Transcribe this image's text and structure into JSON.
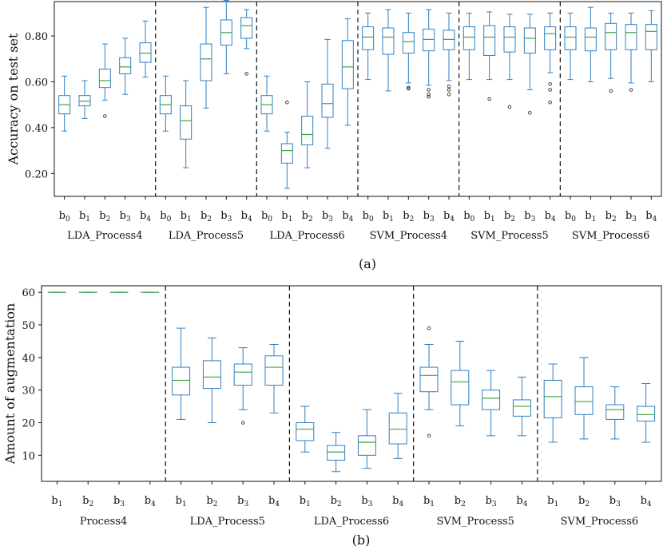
{
  "colors": {
    "box": "#2f7fc1",
    "median": "#3ca63c",
    "flier": "#333333",
    "divider": "#111111",
    "axes": "#111111"
  },
  "chart_data": [
    {
      "type": "box",
      "panel_label": "(a)",
      "ylabel": "Accuracy on test set",
      "ylim": [
        0.1,
        0.95
      ],
      "yticks": [
        "0.20",
        "0.40",
        "0.60",
        "0.80"
      ],
      "ytick_values": [
        0.2,
        0.4,
        0.6,
        0.8
      ],
      "groups": [
        {
          "name": "LDA_Process4",
          "boxes": [
            {
              "label": "b0",
              "whislo": 0.385,
              "q1": 0.46,
              "med": 0.5,
              "q3": 0.54,
              "whishi": 0.625,
              "fliers": []
            },
            {
              "label": "b1",
              "whislo": 0.44,
              "q1": 0.495,
              "med": 0.515,
              "q3": 0.54,
              "whishi": 0.605,
              "fliers": []
            },
            {
              "label": "b2",
              "whislo": 0.52,
              "q1": 0.575,
              "med": 0.605,
              "q3": 0.655,
              "whishi": 0.765,
              "fliers": [
                0.45
              ]
            },
            {
              "label": "b3",
              "whislo": 0.545,
              "q1": 0.635,
              "med": 0.665,
              "q3": 0.705,
              "whishi": 0.79,
              "fliers": []
            },
            {
              "label": "b4",
              "whislo": 0.62,
              "q1": 0.685,
              "med": 0.725,
              "q3": 0.77,
              "whishi": 0.865,
              "fliers": []
            }
          ]
        },
        {
          "name": "LDA_Process5",
          "boxes": [
            {
              "label": "b0",
              "whislo": 0.385,
              "q1": 0.46,
              "med": 0.5,
              "q3": 0.54,
              "whishi": 0.625,
              "fliers": []
            },
            {
              "label": "b1",
              "whislo": 0.225,
              "q1": 0.35,
              "med": 0.43,
              "q3": 0.495,
              "whishi": 0.605,
              "fliers": []
            },
            {
              "label": "b2",
              "whislo": 0.485,
              "q1": 0.605,
              "med": 0.7,
              "q3": 0.765,
              "whishi": 0.925,
              "fliers": []
            },
            {
              "label": "b3",
              "whislo": 0.635,
              "q1": 0.76,
              "med": 0.815,
              "q3": 0.87,
              "whishi": 0.955,
              "fliers": []
            },
            {
              "label": "b4",
              "whislo": 0.745,
              "q1": 0.79,
              "med": 0.845,
              "q3": 0.88,
              "whishi": 0.915,
              "fliers": [
                0.635
              ]
            }
          ]
        },
        {
          "name": "LDA_Process6",
          "boxes": [
            {
              "label": "b0",
              "whislo": 0.385,
              "q1": 0.46,
              "med": 0.5,
              "q3": 0.54,
              "whishi": 0.625,
              "fliers": []
            },
            {
              "label": "b1",
              "whislo": 0.135,
              "q1": 0.245,
              "med": 0.3,
              "q3": 0.33,
              "whishi": 0.38,
              "fliers": [
                0.51
              ]
            },
            {
              "label": "b2",
              "whislo": 0.225,
              "q1": 0.325,
              "med": 0.37,
              "q3": 0.45,
              "whishi": 0.6,
              "fliers": []
            },
            {
              "label": "b3",
              "whislo": 0.31,
              "q1": 0.445,
              "med": 0.505,
              "q3": 0.59,
              "whishi": 0.785,
              "fliers": []
            },
            {
              "label": "b4",
              "whislo": 0.41,
              "q1": 0.57,
              "med": 0.665,
              "q3": 0.78,
              "whishi": 0.875,
              "fliers": []
            }
          ]
        },
        {
          "name": "SVM_Process4",
          "boxes": [
            {
              "label": "b0",
              "whislo": 0.61,
              "q1": 0.74,
              "med": 0.795,
              "q3": 0.84,
              "whishi": 0.9,
              "fliers": []
            },
            {
              "label": "b1",
              "whislo": 0.56,
              "q1": 0.72,
              "med": 0.795,
              "q3": 0.835,
              "whishi": 0.915,
              "fliers": []
            },
            {
              "label": "b2",
              "whislo": 0.595,
              "q1": 0.725,
              "med": 0.775,
              "q3": 0.815,
              "whishi": 0.9,
              "fliers": [
                0.57,
                0.575
              ]
            },
            {
              "label": "b3",
              "whislo": 0.585,
              "q1": 0.735,
              "med": 0.785,
              "q3": 0.83,
              "whishi": 0.915,
              "fliers": [
                0.535,
                0.545,
                0.565
              ]
            },
            {
              "label": "b4",
              "whislo": 0.605,
              "q1": 0.74,
              "med": 0.785,
              "q3": 0.825,
              "whishi": 0.9,
              "fliers": [
                0.545,
                0.565,
                0.58
              ]
            }
          ]
        },
        {
          "name": "SVM_Process5",
          "boxes": [
            {
              "label": "b0",
              "whislo": 0.61,
              "q1": 0.74,
              "med": 0.795,
              "q3": 0.84,
              "whishi": 0.9,
              "fliers": []
            },
            {
              "label": "b1",
              "whislo": 0.61,
              "q1": 0.715,
              "med": 0.795,
              "q3": 0.845,
              "whishi": 0.905,
              "fliers": [
                0.525
              ]
            },
            {
              "label": "b2",
              "whislo": 0.61,
              "q1": 0.73,
              "med": 0.795,
              "q3": 0.84,
              "whishi": 0.895,
              "fliers": [
                0.49
              ]
            },
            {
              "label": "b3",
              "whislo": 0.565,
              "q1": 0.725,
              "med": 0.79,
              "q3": 0.835,
              "whishi": 0.895,
              "fliers": [
                0.465
              ]
            },
            {
              "label": "b4",
              "whislo": 0.64,
              "q1": 0.74,
              "med": 0.81,
              "q3": 0.84,
              "whishi": 0.9,
              "fliers": [
                0.51,
                0.565,
                0.59
              ]
            }
          ]
        },
        {
          "name": "SVM_Process6",
          "boxes": [
            {
              "label": "b0",
              "whislo": 0.61,
              "q1": 0.74,
              "med": 0.795,
              "q3": 0.84,
              "whishi": 0.9,
              "fliers": []
            },
            {
              "label": "b1",
              "whislo": 0.6,
              "q1": 0.735,
              "med": 0.795,
              "q3": 0.835,
              "whishi": 0.925,
              "fliers": []
            },
            {
              "label": "b2",
              "whislo": 0.615,
              "q1": 0.74,
              "med": 0.815,
              "q3": 0.855,
              "whishi": 0.9,
              "fliers": [
                0.56
              ]
            },
            {
              "label": "b3",
              "whislo": 0.595,
              "q1": 0.74,
              "med": 0.815,
              "q3": 0.85,
              "whishi": 0.9,
              "fliers": [
                0.565
              ]
            },
            {
              "label": "b4",
              "whislo": 0.6,
              "q1": 0.74,
              "med": 0.82,
              "q3": 0.85,
              "whishi": 0.91,
              "fliers": []
            }
          ]
        }
      ]
    },
    {
      "type": "box",
      "panel_label": "(b)",
      "ylabel": "Amount of augmentation",
      "ylim": [
        2,
        62
      ],
      "yticks": [
        "10",
        "20",
        "30",
        "40",
        "50",
        "60"
      ],
      "ytick_values": [
        10,
        20,
        30,
        40,
        50,
        60
      ],
      "groups": [
        {
          "name": "Process4",
          "boxes": [
            {
              "label": "b1",
              "whislo": 60,
              "q1": 60,
              "med": 60,
              "q3": 60,
              "whishi": 60,
              "fliers": []
            },
            {
              "label": "b2",
              "whislo": 60,
              "q1": 60,
              "med": 60,
              "q3": 60,
              "whishi": 60,
              "fliers": []
            },
            {
              "label": "b3",
              "whislo": 60,
              "q1": 60,
              "med": 60,
              "q3": 60,
              "whishi": 60,
              "fliers": []
            },
            {
              "label": "b4",
              "whislo": 60,
              "q1": 60,
              "med": 60,
              "q3": 60,
              "whishi": 60,
              "fliers": []
            }
          ]
        },
        {
          "name": "LDA_Process5",
          "boxes": [
            {
              "label": "b1",
              "whislo": 21,
              "q1": 28.5,
              "med": 33,
              "q3": 37,
              "whishi": 49,
              "fliers": []
            },
            {
              "label": "b2",
              "whislo": 20,
              "q1": 30.5,
              "med": 34,
              "q3": 39,
              "whishi": 46,
              "fliers": []
            },
            {
              "label": "b3",
              "whislo": 24,
              "q1": 31.5,
              "med": 35.5,
              "q3": 38,
              "whishi": 43,
              "fliers": [
                20
              ]
            },
            {
              "label": "b4",
              "whislo": 23,
              "q1": 31.5,
              "med": 37,
              "q3": 40.5,
              "whishi": 44,
              "fliers": []
            }
          ]
        },
        {
          "name": "LDA_Process6",
          "boxes": [
            {
              "label": "b1",
              "whislo": 11,
              "q1": 14.5,
              "med": 18,
              "q3": 20,
              "whishi": 25,
              "fliers": []
            },
            {
              "label": "b2",
              "whislo": 5,
              "q1": 8.5,
              "med": 11,
              "q3": 13,
              "whishi": 17,
              "fliers": []
            },
            {
              "label": "b3",
              "whislo": 6,
              "q1": 10,
              "med": 14,
              "q3": 16,
              "whishi": 24,
              "fliers": []
            },
            {
              "label": "b4",
              "whislo": 9,
              "q1": 13.5,
              "med": 18,
              "q3": 23,
              "whishi": 29,
              "fliers": []
            }
          ]
        },
        {
          "name": "SVM_Process5",
          "boxes": [
            {
              "label": "b1",
              "whislo": 24,
              "q1": 29.5,
              "med": 34.5,
              "q3": 37,
              "whishi": 44,
              "fliers": [
                49,
                16
              ]
            },
            {
              "label": "b2",
              "whislo": 19,
              "q1": 25.5,
              "med": 32.5,
              "q3": 36,
              "whishi": 45,
              "fliers": []
            },
            {
              "label": "b3",
              "whislo": 16,
              "q1": 24,
              "med": 27.5,
              "q3": 30,
              "whishi": 36,
              "fliers": []
            },
            {
              "label": "b4",
              "whislo": 16,
              "q1": 22,
              "med": 25,
              "q3": 27,
              "whishi": 34,
              "fliers": []
            }
          ]
        },
        {
          "name": "SVM_Process6",
          "boxes": [
            {
              "label": "b1",
              "whislo": 14,
              "q1": 21.5,
              "med": 28,
              "q3": 33,
              "whishi": 38,
              "fliers": []
            },
            {
              "label": "b2",
              "whislo": 15,
              "q1": 22.5,
              "med": 26.5,
              "q3": 31,
              "whishi": 40,
              "fliers": []
            },
            {
              "label": "b3",
              "whislo": 15,
              "q1": 21,
              "med": 24,
              "q3": 25.5,
              "whishi": 31,
              "fliers": []
            },
            {
              "label": "b4",
              "whislo": 14,
              "q1": 20.5,
              "med": 22.5,
              "q3": 25,
              "whishi": 32,
              "fliers": []
            }
          ]
        }
      ]
    }
  ]
}
